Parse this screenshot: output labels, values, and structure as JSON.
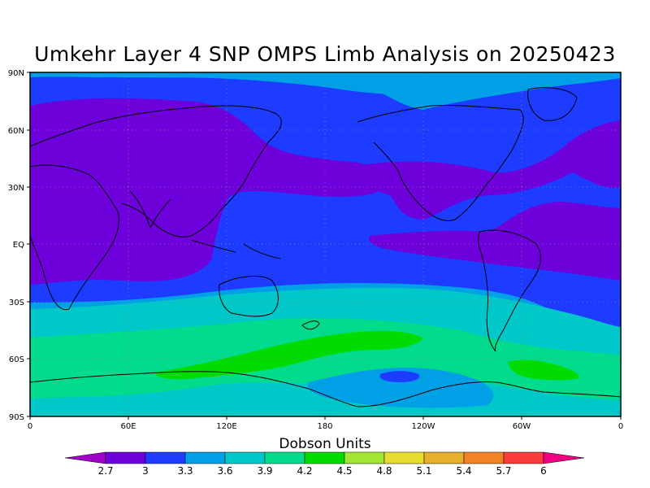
{
  "map": {
    "title": "Umkehr Layer 4 SNP OMPS Limb Analysis on 20250423",
    "projection": "equirectangular",
    "center_longitude": 180,
    "lat_ticks": [
      "90N",
      "60N",
      "30N",
      "EQ",
      "30S",
      "60S",
      "90S"
    ],
    "lon_ticks": [
      "0",
      "60E",
      "120E",
      "180",
      "120W",
      "60W",
      "0"
    ],
    "grid": "dotted",
    "coastlines": true
  },
  "colorbar": {
    "title": "Dobson Units",
    "labels": [
      "2.7",
      "3",
      "3.3",
      "3.6",
      "3.9",
      "4.2",
      "4.5",
      "4.8",
      "5.1",
      "5.4",
      "5.7",
      "6"
    ],
    "colors": [
      "#a000c8",
      "#6e00dc",
      "#1e3cff",
      "#00a0e6",
      "#00c8c8",
      "#00dc8c",
      "#00dc00",
      "#a0e632",
      "#e6dc32",
      "#e6af2d",
      "#f08228",
      "#fa3c3c",
      "#f00082"
    ],
    "arrow_left": "#a000c8",
    "arrow_right": "#f00082"
  },
  "chart_data": {
    "type": "heatmap",
    "title": "Umkehr Layer 4 SNP OMPS Limb Analysis on 20250423",
    "units": "Dobson Units",
    "levels": [
      2.7,
      3,
      3.3,
      3.6,
      3.9,
      4.2,
      4.5,
      4.8,
      5.1,
      5.4,
      5.7,
      6
    ]
  }
}
